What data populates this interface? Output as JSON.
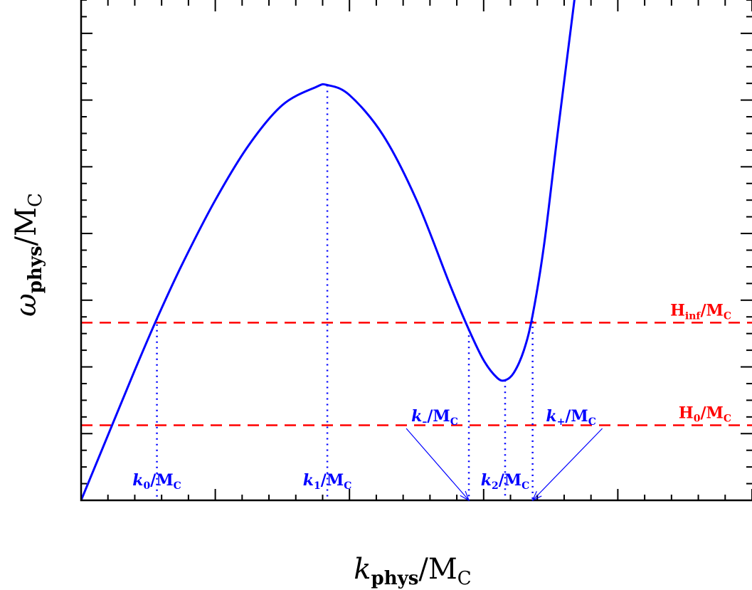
{
  "chart_data": {
    "type": "line",
    "title": "",
    "xlabel": {
      "main": "k",
      "sub": "phys",
      "tail": "/M",
      "tailsub": "C"
    },
    "ylabel": {
      "main": "ω",
      "sub": "phys",
      "tail": "/M",
      "tailsub": "C"
    },
    "xlim": [
      0,
      1
    ],
    "ylim": [
      0,
      1
    ],
    "grid": false,
    "series": [
      {
        "color": "#0000ff",
        "x": [
          0.0,
          0.04,
          0.08,
          0.113,
          0.15,
          0.2,
          0.25,
          0.3,
          0.35,
          0.367,
          0.4,
          0.45,
          0.5,
          0.55,
          0.578,
          0.6,
          0.62,
          0.632,
          0.645,
          0.66,
          0.673,
          0.69,
          0.71,
          0.74
        ],
        "y": [
          0.0,
          0.13,
          0.26,
          0.363,
          0.47,
          0.6,
          0.71,
          0.79,
          0.826,
          0.83,
          0.81,
          0.73,
          0.6,
          0.43,
          0.341,
          0.28,
          0.245,
          0.24,
          0.255,
          0.3,
          0.37,
          0.51,
          0.73,
          1.05
        ]
      }
    ],
    "reference_lines": [
      {
        "label_main": "H",
        "label_sub": "inf",
        "label_tail": "/M",
        "label_tailsub": "C",
        "y": 0.355,
        "color": "#ff0000"
      },
      {
        "label_main": "H",
        "label_sub": "0",
        "label_tail": "/M",
        "label_tailsub": "C",
        "y": 0.15,
        "color": "#ff0000"
      }
    ],
    "markers": [
      {
        "main": "k",
        "sub": "0",
        "tail": "/M",
        "tailsub": "C",
        "x": 0.113,
        "y": 0.363
      },
      {
        "main": "k",
        "sub": "1",
        "tail": "/M",
        "tailsub": "C",
        "x": 0.367,
        "y": 0.83
      },
      {
        "main": "k",
        "sub": "–",
        "tail": "/M",
        "tailsub": "C",
        "x": 0.578,
        "y": 0.341,
        "arrow": true
      },
      {
        "main": "k",
        "sub": "2",
        "tail": "/M",
        "tailsub": "C",
        "x": 0.632,
        "y": 0.24
      },
      {
        "main": "k",
        "sub": "+",
        "tail": "/M",
        "tailsub": "C",
        "x": 0.673,
        "y": 0.37,
        "arrow": true
      }
    ]
  }
}
